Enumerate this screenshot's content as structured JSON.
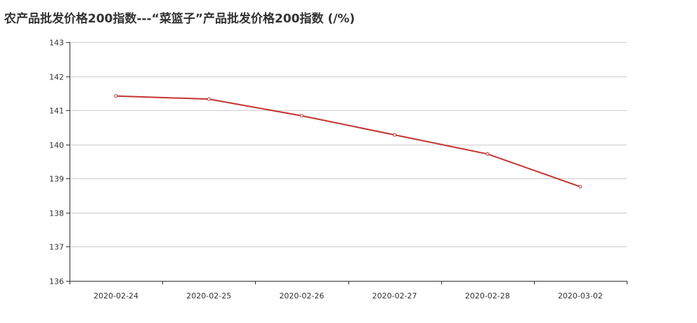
{
  "chart_data": {
    "type": "line",
    "title": "农产品批发价格200指数---“菜篮子”产品批发价格200指数 (/%)",
    "xlabel": "",
    "ylabel": "",
    "categories": [
      "2020-02-24",
      "2020-02-25",
      "2020-02-26",
      "2020-02-27",
      "2020-02-28",
      "2020-03-02"
    ],
    "series": [
      {
        "values": [
          141.42,
          141.33,
          140.84,
          140.28,
          139.72,
          138.76
        ]
      }
    ],
    "ylim": [
      136,
      143
    ],
    "yticks": [
      136,
      137,
      138,
      139,
      140,
      141,
      142,
      143
    ],
    "grid": true,
    "legend": "none",
    "line_color": "#c23531"
  }
}
